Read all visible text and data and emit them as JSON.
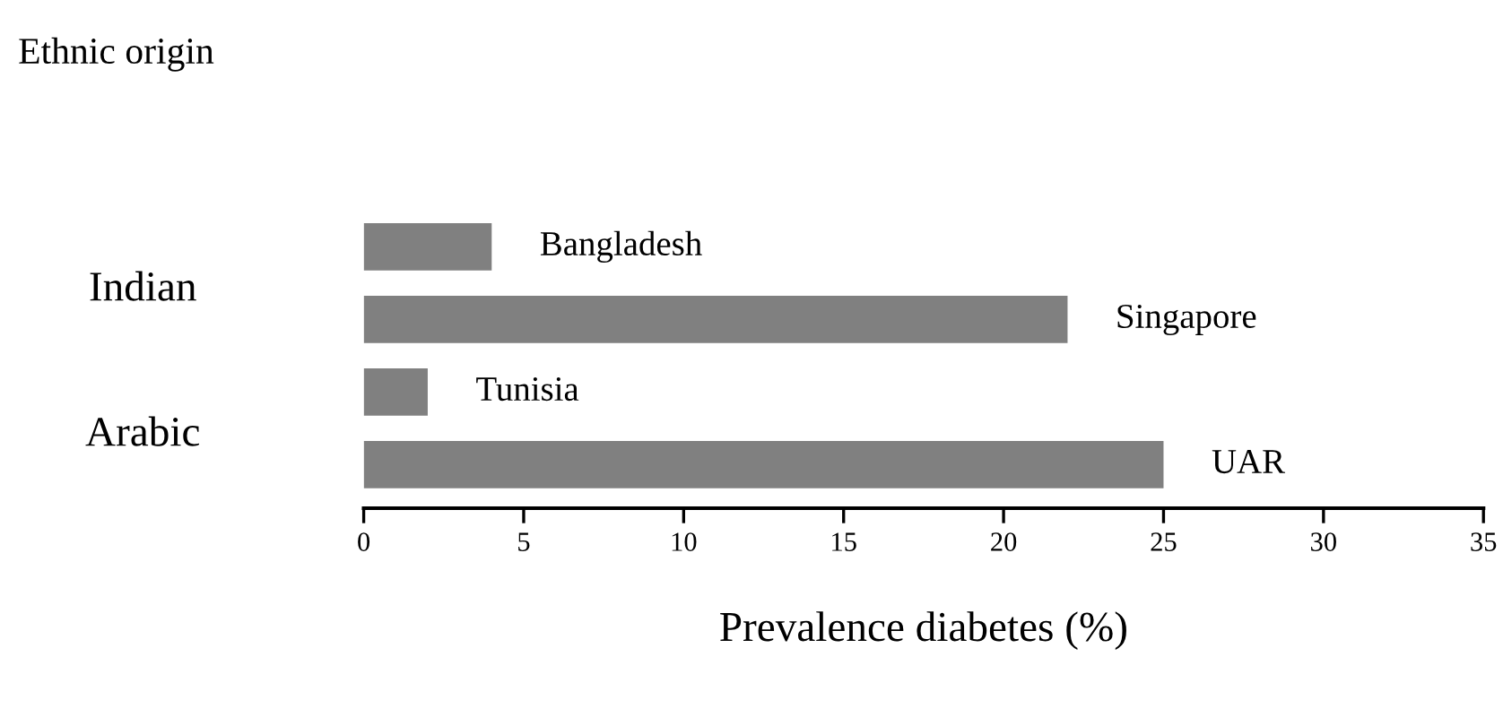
{
  "chart_data": {
    "type": "bar",
    "orientation": "horizontal",
    "title": "Ethnic origin",
    "xlabel": "Prevalence diabetes (%)",
    "categories": [
      "Bangladesh",
      "Singapore",
      "Tunisia",
      "UAR"
    ],
    "values": [
      4,
      22,
      2,
      25
    ],
    "color": "#808080",
    "annotations": [
      "Indian",
      "Arabic"
    ],
    "xlim": [
      0,
      35
    ],
    "xticks": [
      0,
      5,
      10,
      15,
      20,
      25,
      30,
      35
    ],
    "grid": false,
    "legend": false
  }
}
